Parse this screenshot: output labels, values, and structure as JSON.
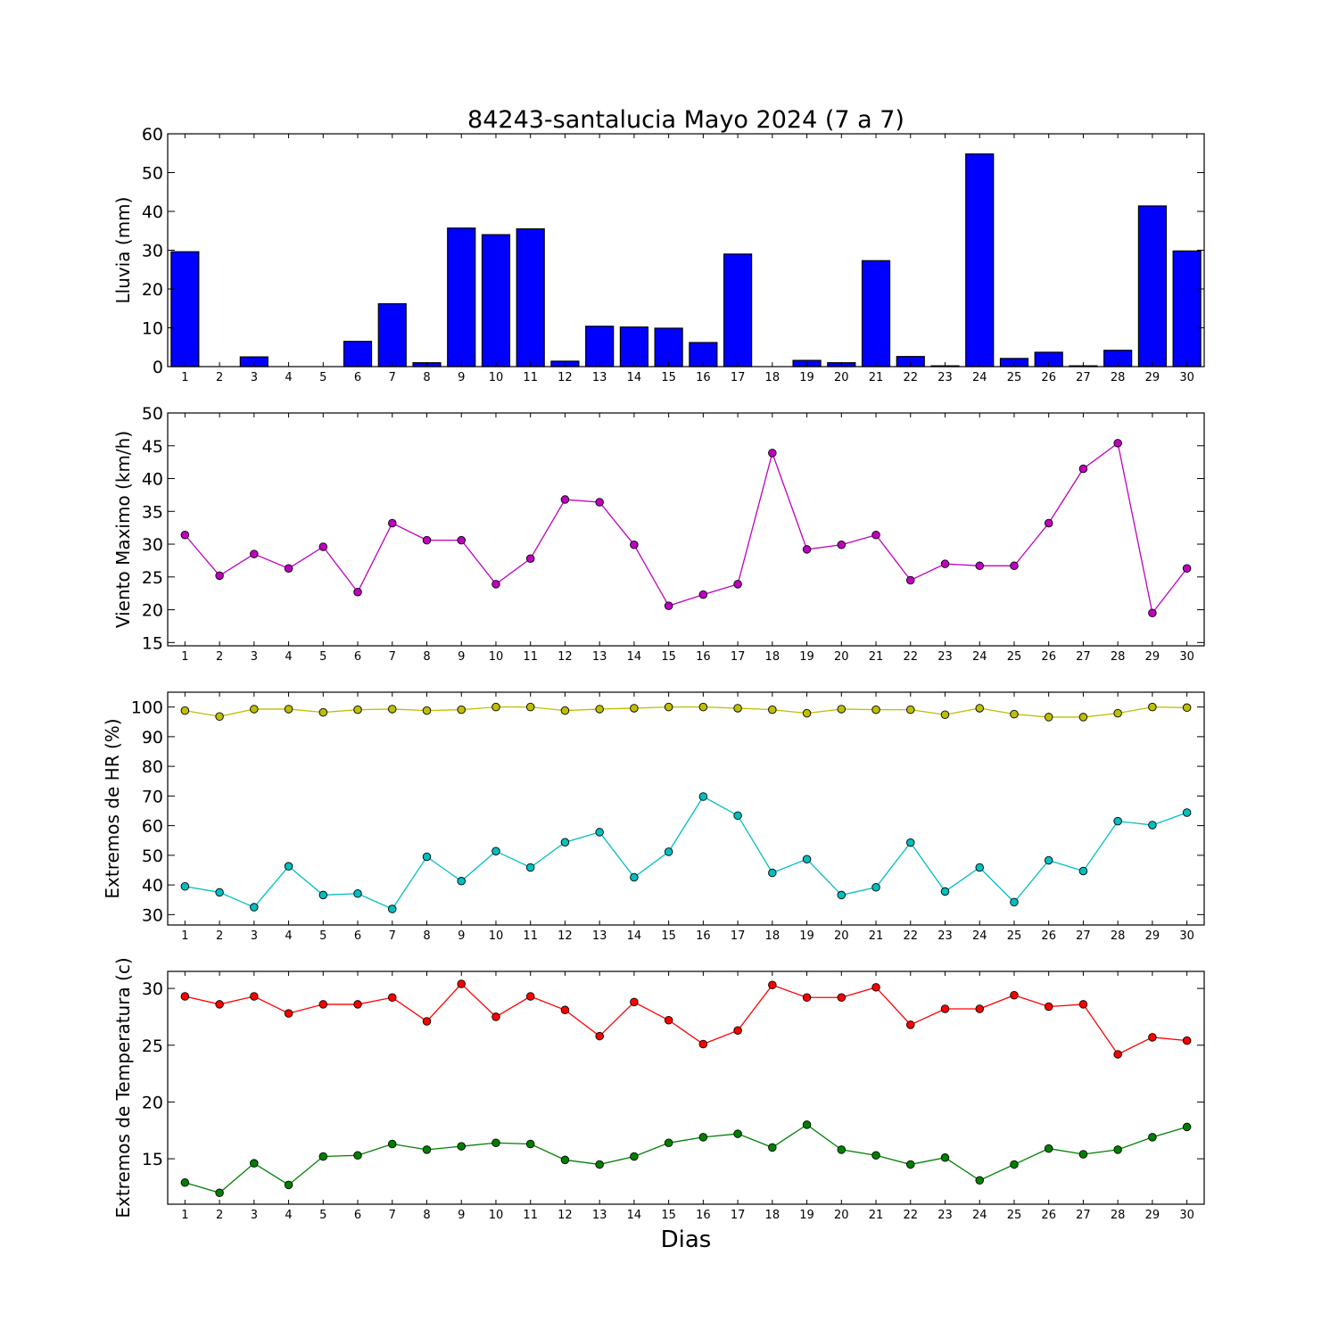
{
  "figure": {
    "title": "84243-santalucia Mayo 2024  (7 a 7)",
    "xlabel": "Dias"
  },
  "colors": {
    "rain": "#0000ff",
    "wind": "#bf00bf",
    "hr_max": "#bfbf00",
    "hr_min": "#00bfbf",
    "temp_max": "#ff0000",
    "temp_min": "#008000"
  },
  "chart_data": [
    {
      "type": "bar",
      "ylabel": "Lluvia (mm)",
      "ylim": [
        0,
        60
      ],
      "yticks": [
        0,
        10,
        20,
        30,
        40,
        50,
        60
      ],
      "categories": [
        "1",
        "2",
        "3",
        "4",
        "5",
        "6",
        "7",
        "8",
        "9",
        "10",
        "11",
        "12",
        "13",
        "14",
        "15",
        "16",
        "17",
        "18",
        "19",
        "20",
        "21",
        "22",
        "23",
        "24",
        "25",
        "26",
        "27",
        "28",
        "29",
        "30"
      ],
      "series": [
        {
          "values": [
            29.6,
            0,
            2.5,
            0,
            0,
            6.5,
            16.2,
            1.0,
            35.7,
            34.0,
            35.5,
            1.4,
            10.4,
            10.2,
            9.9,
            6.2,
            29.0,
            0,
            1.6,
            1.0,
            27.3,
            2.6,
            0.2,
            54.8,
            2.1,
            3.7,
            0.2,
            4.2,
            41.4,
            29.8
          ]
        }
      ],
      "grid": false
    },
    {
      "type": "line",
      "ylabel": "Viento Maximo (km/h)",
      "ylim": [
        14.5,
        50
      ],
      "yticks": [
        15,
        20,
        25,
        30,
        35,
        40,
        45,
        50
      ],
      "categories": [
        "1",
        "2",
        "3",
        "4",
        "5",
        "6",
        "7",
        "8",
        "9",
        "10",
        "11",
        "12",
        "13",
        "14",
        "15",
        "16",
        "17",
        "18",
        "19",
        "20",
        "21",
        "22",
        "23",
        "24",
        "25",
        "26",
        "27",
        "28",
        "29",
        "30"
      ],
      "series": [
        {
          "values": [
            31.4,
            25.2,
            28.5,
            26.3,
            29.6,
            22.7,
            33.2,
            30.6,
            30.6,
            23.9,
            27.8,
            36.8,
            36.4,
            29.9,
            20.6,
            22.3,
            23.9,
            43.9,
            29.2,
            29.9,
            31.4,
            24.5,
            27.0,
            26.7,
            26.7,
            33.2,
            41.5,
            45.4,
            19.5,
            26.3
          ]
        }
      ],
      "grid": false
    },
    {
      "type": "line",
      "ylabel": "Extremos de HR (%)",
      "ylim": [
        26.5,
        105
      ],
      "yticks": [
        30,
        40,
        50,
        60,
        70,
        80,
        90,
        100
      ],
      "categories": [
        "1",
        "2",
        "3",
        "4",
        "5",
        "6",
        "7",
        "8",
        "9",
        "10",
        "11",
        "12",
        "13",
        "14",
        "15",
        "16",
        "17",
        "18",
        "19",
        "20",
        "21",
        "22",
        "23",
        "24",
        "25",
        "26",
        "27",
        "28",
        "29",
        "30"
      ],
      "series": [
        {
          "values": [
            98.8,
            96.8,
            99.3,
            99.3,
            98.2,
            99.1,
            99.3,
            98.8,
            99.1,
            100,
            100,
            98.8,
            99.3,
            99.6,
            100,
            100,
            99.6,
            99.1,
            97.9,
            99.3,
            99.1,
            99.1,
            97.4,
            99.6,
            97.6,
            96.6,
            96.6,
            97.9,
            100,
            99.8
          ]
        },
        {
          "values": [
            39.5,
            37.5,
            32.5,
            46.3,
            36.6,
            37.1,
            31.9,
            49.5,
            41.3,
            51.4,
            45.9,
            54.4,
            57.8,
            42.6,
            51.2,
            69.8,
            63.4,
            44.1,
            48.7,
            36.6,
            39.2,
            54.3,
            37.8,
            45.9,
            34.2,
            48.3,
            44.7,
            61.5,
            60.2,
            64.4
          ]
        }
      ],
      "grid": false
    },
    {
      "type": "line",
      "ylabel": "Extremos de Temperatura (c)",
      "ylim": [
        11,
        31.5
      ],
      "yticks": [
        15,
        20,
        25,
        30
      ],
      "categories": [
        "1",
        "2",
        "3",
        "4",
        "5",
        "6",
        "7",
        "8",
        "9",
        "10",
        "11",
        "12",
        "13",
        "14",
        "15",
        "16",
        "17",
        "18",
        "19",
        "20",
        "21",
        "22",
        "23",
        "24",
        "25",
        "26",
        "27",
        "28",
        "29",
        "30"
      ],
      "series": [
        {
          "values": [
            29.3,
            28.6,
            29.3,
            27.8,
            28.6,
            28.6,
            29.2,
            27.1,
            30.4,
            27.5,
            29.3,
            28.1,
            25.8,
            28.8,
            27.2,
            25.1,
            26.3,
            30.3,
            29.2,
            29.2,
            30.1,
            26.8,
            28.2,
            28.2,
            29.4,
            28.4,
            28.6,
            24.2,
            25.7,
            25.4
          ]
        },
        {
          "values": [
            12.9,
            12.0,
            14.6,
            12.7,
            15.2,
            15.3,
            16.3,
            15.8,
            16.1,
            16.4,
            16.3,
            14.9,
            14.5,
            15.2,
            16.4,
            16.9,
            17.2,
            16.0,
            18.0,
            15.8,
            15.3,
            14.5,
            15.1,
            13.1,
            14.5,
            15.9,
            15.4,
            15.8,
            16.9,
            17.8
          ]
        }
      ],
      "grid": false
    }
  ]
}
